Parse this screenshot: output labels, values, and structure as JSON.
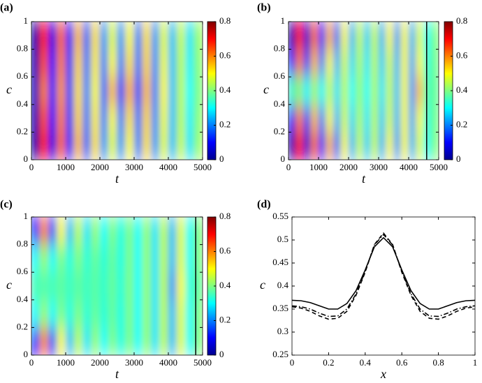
{
  "chart_data": [
    {
      "type": "heatmap",
      "panel_label": "(a)",
      "xlabel": "t",
      "ylabel": "c",
      "colormap": "jet",
      "x": [
        125,
        375,
        625,
        875,
        1125,
        1375,
        1625,
        1875,
        2125,
        2375,
        2625,
        2875,
        3125,
        3375,
        3625,
        3875,
        4125,
        4375,
        4625,
        4875
      ],
      "y": [
        0.1,
        0.3,
        0.5,
        0.7,
        0.9
      ],
      "z": [
        [
          0.03,
          0.68,
          0.08,
          0.62,
          0.12,
          0.55,
          0.18,
          0.52,
          0.22,
          0.48,
          0.22,
          0.5,
          0.2,
          0.52,
          0.22,
          0.48,
          0.25,
          0.46,
          0.28,
          0.42
        ],
        [
          0.04,
          0.64,
          0.1,
          0.6,
          0.14,
          0.53,
          0.19,
          0.51,
          0.2,
          0.5,
          0.2,
          0.52,
          0.19,
          0.53,
          0.21,
          0.49,
          0.25,
          0.45,
          0.29,
          0.41
        ],
        [
          0.05,
          0.6,
          0.12,
          0.58,
          0.15,
          0.52,
          0.2,
          0.5,
          0.18,
          0.55,
          0.15,
          0.56,
          0.16,
          0.55,
          0.2,
          0.5,
          0.25,
          0.45,
          0.3,
          0.4
        ],
        [
          0.04,
          0.64,
          0.1,
          0.6,
          0.14,
          0.53,
          0.19,
          0.51,
          0.2,
          0.5,
          0.2,
          0.52,
          0.19,
          0.53,
          0.21,
          0.49,
          0.25,
          0.45,
          0.29,
          0.41
        ],
        [
          0.03,
          0.68,
          0.08,
          0.62,
          0.12,
          0.55,
          0.18,
          0.52,
          0.22,
          0.48,
          0.22,
          0.5,
          0.2,
          0.52,
          0.22,
          0.48,
          0.25,
          0.46,
          0.28,
          0.42
        ]
      ],
      "xlim": [
        0,
        5000
      ],
      "xticks": [
        0,
        1000,
        2000,
        3000,
        4000,
        5000
      ],
      "ylim": [
        0,
        1
      ],
      "yticks": [
        0,
        0.2,
        0.4,
        0.6,
        0.8,
        1
      ],
      "clim": [
        0,
        0.8
      ],
      "cticks": [
        0,
        0.2,
        0.4,
        0.6,
        0.8
      ]
    },
    {
      "type": "heatmap",
      "panel_label": "(b)",
      "xlabel": "t",
      "ylabel": "c",
      "colormap": "jet",
      "x": [
        125,
        375,
        625,
        875,
        1125,
        1375,
        1625,
        1875,
        2125,
        2375,
        2625,
        2875,
        3125,
        3375,
        3625,
        3875,
        4125,
        4375,
        4625,
        4875
      ],
      "y": [
        0.1,
        0.3,
        0.5,
        0.7,
        0.9
      ],
      "z": [
        [
          0.03,
          0.7,
          0.06,
          0.62,
          0.12,
          0.56,
          0.18,
          0.5,
          0.24,
          0.46,
          0.26,
          0.46,
          0.24,
          0.5,
          0.22,
          0.5,
          0.24,
          0.48,
          0.3,
          0.4
        ],
        [
          0.1,
          0.6,
          0.15,
          0.55,
          0.2,
          0.5,
          0.24,
          0.47,
          0.27,
          0.44,
          0.28,
          0.45,
          0.26,
          0.47,
          0.24,
          0.5,
          0.23,
          0.5,
          0.32,
          0.39
        ],
        [
          0.35,
          0.4,
          0.3,
          0.42,
          0.3,
          0.45,
          0.28,
          0.45,
          0.3,
          0.42,
          0.3,
          0.44,
          0.28,
          0.46,
          0.25,
          0.5,
          0.22,
          0.55,
          0.35,
          0.38
        ],
        [
          0.1,
          0.6,
          0.15,
          0.55,
          0.2,
          0.5,
          0.24,
          0.47,
          0.27,
          0.44,
          0.28,
          0.45,
          0.26,
          0.47,
          0.24,
          0.5,
          0.23,
          0.5,
          0.32,
          0.39
        ],
        [
          0.03,
          0.7,
          0.06,
          0.62,
          0.12,
          0.56,
          0.18,
          0.5,
          0.24,
          0.46,
          0.26,
          0.46,
          0.24,
          0.5,
          0.22,
          0.5,
          0.24,
          0.48,
          0.3,
          0.4
        ]
      ],
      "xlim": [
        0,
        5000
      ],
      "xticks": [
        0,
        1000,
        2000,
        3000,
        4000,
        5000
      ],
      "ylim": [
        0,
        1
      ],
      "yticks": [
        0,
        0.2,
        0.4,
        0.6,
        0.8,
        1
      ],
      "clim": [
        0,
        0.8
      ],
      "cticks": [
        0,
        0.2,
        0.4,
        0.6,
        0.8
      ],
      "vline": 4600
    },
    {
      "type": "heatmap",
      "panel_label": "(c)",
      "xlabel": "t",
      "ylabel": "c",
      "colormap": "jet",
      "x": [
        125,
        375,
        625,
        875,
        1125,
        1375,
        1625,
        1875,
        2125,
        2375,
        2625,
        2875,
        3125,
        3375,
        3625,
        3875,
        4125,
        4375,
        4625,
        4875
      ],
      "y": [
        0.1,
        0.3,
        0.5,
        0.7,
        0.9
      ],
      "z": [
        [
          0.1,
          0.6,
          0.15,
          0.5,
          0.25,
          0.45,
          0.28,
          0.42,
          0.3,
          0.4,
          0.32,
          0.4,
          0.3,
          0.42,
          0.28,
          0.45,
          0.25,
          0.48,
          0.3,
          0.4
        ],
        [
          0.3,
          0.42,
          0.3,
          0.4,
          0.32,
          0.4,
          0.33,
          0.38,
          0.33,
          0.38,
          0.32,
          0.4,
          0.3,
          0.42,
          0.28,
          0.45,
          0.25,
          0.48,
          0.3,
          0.4
        ],
        [
          0.36,
          0.36,
          0.36,
          0.37,
          0.35,
          0.37,
          0.35,
          0.37,
          0.34,
          0.38,
          0.33,
          0.4,
          0.3,
          0.42,
          0.28,
          0.45,
          0.22,
          0.5,
          0.32,
          0.38
        ],
        [
          0.3,
          0.42,
          0.3,
          0.4,
          0.32,
          0.4,
          0.33,
          0.38,
          0.33,
          0.38,
          0.32,
          0.4,
          0.3,
          0.42,
          0.28,
          0.45,
          0.25,
          0.48,
          0.3,
          0.4
        ],
        [
          0.1,
          0.6,
          0.15,
          0.5,
          0.25,
          0.45,
          0.28,
          0.42,
          0.3,
          0.4,
          0.32,
          0.4,
          0.3,
          0.42,
          0.28,
          0.45,
          0.25,
          0.48,
          0.3,
          0.4
        ]
      ],
      "xlim": [
        0,
        5000
      ],
      "xticks": [
        0,
        1000,
        2000,
        3000,
        4000,
        5000
      ],
      "ylim": [
        0,
        1
      ],
      "yticks": [
        0,
        0.2,
        0.4,
        0.6,
        0.8,
        1
      ],
      "clim": [
        0,
        0.8
      ],
      "cticks": [
        0,
        0.2,
        0.4,
        0.6,
        0.8
      ],
      "vline": 4800
    },
    {
      "type": "line",
      "panel_label": "(d)",
      "xlabel": "x",
      "ylabel": "c",
      "x": [
        0,
        0.05,
        0.1,
        0.15,
        0.2,
        0.25,
        0.3,
        0.35,
        0.4,
        0.45,
        0.5,
        0.55,
        0.6,
        0.65,
        0.7,
        0.75,
        0.8,
        0.85,
        0.9,
        0.95,
        1
      ],
      "series": [
        {
          "color": "#000000",
          "style": "solid",
          "values": [
            0.369,
            0.368,
            0.364,
            0.357,
            0.35,
            0.35,
            0.362,
            0.39,
            0.435,
            0.485,
            0.505,
            0.485,
            0.435,
            0.39,
            0.362,
            0.35,
            0.35,
            0.357,
            0.364,
            0.368,
            0.369
          ]
        },
        {
          "color": "#000000",
          "style": "dashed",
          "values": [
            0.355,
            0.352,
            0.345,
            0.335,
            0.328,
            0.33,
            0.345,
            0.38,
            0.43,
            0.49,
            0.515,
            0.49,
            0.43,
            0.38,
            0.345,
            0.33,
            0.328,
            0.335,
            0.345,
            0.352,
            0.355
          ]
        },
        {
          "color": "#000000",
          "style": "dashdot",
          "values": [
            0.357,
            0.355,
            0.35,
            0.341,
            0.334,
            0.335,
            0.35,
            0.383,
            0.432,
            0.489,
            0.512,
            0.489,
            0.432,
            0.383,
            0.35,
            0.335,
            0.334,
            0.341,
            0.35,
            0.355,
            0.357
          ]
        }
      ],
      "xlim": [
        0,
        1
      ],
      "xticks": [
        0,
        0.2,
        0.4,
        0.6,
        0.8,
        1
      ],
      "ylim": [
        0.25,
        0.55
      ],
      "yticks": [
        0.25,
        0.3,
        0.35,
        0.4,
        0.45,
        0.5,
        0.55
      ]
    }
  ]
}
